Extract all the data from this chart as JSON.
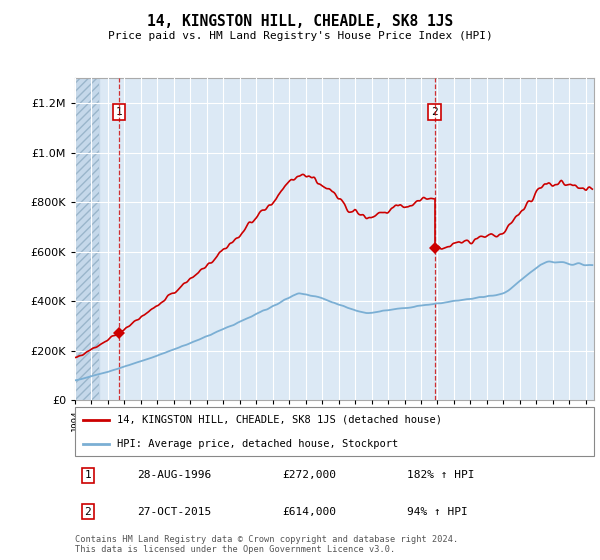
{
  "title": "14, KINGSTON HILL, CHEADLE, SK8 1JS",
  "subtitle": "Price paid vs. HM Land Registry's House Price Index (HPI)",
  "legend_line1": "14, KINGSTON HILL, CHEADLE, SK8 1JS (detached house)",
  "legend_line2": "HPI: Average price, detached house, Stockport",
  "transaction1_date": "28-AUG-1996",
  "transaction1_price": 272000,
  "transaction1_hpi": "182% ↑ HPI",
  "transaction2_date": "27-OCT-2015",
  "transaction2_price": 614000,
  "transaction2_hpi": "94% ↑ HPI",
  "footer": "Contains HM Land Registry data © Crown copyright and database right 2024.\nThis data is licensed under the Open Government Licence v3.0.",
  "red_color": "#cc0000",
  "blue_color": "#7bafd4",
  "bg_color": "#dce9f5",
  "hatch_color": "#b0c4d8",
  "ylim": [
    0,
    1300000
  ],
  "yticks": [
    0,
    200000,
    400000,
    600000,
    800000,
    1000000,
    1200000
  ],
  "xlim_start": 1994.0,
  "xlim_end": 2025.5,
  "t1_year": 1996.65,
  "t2_year": 2015.82
}
